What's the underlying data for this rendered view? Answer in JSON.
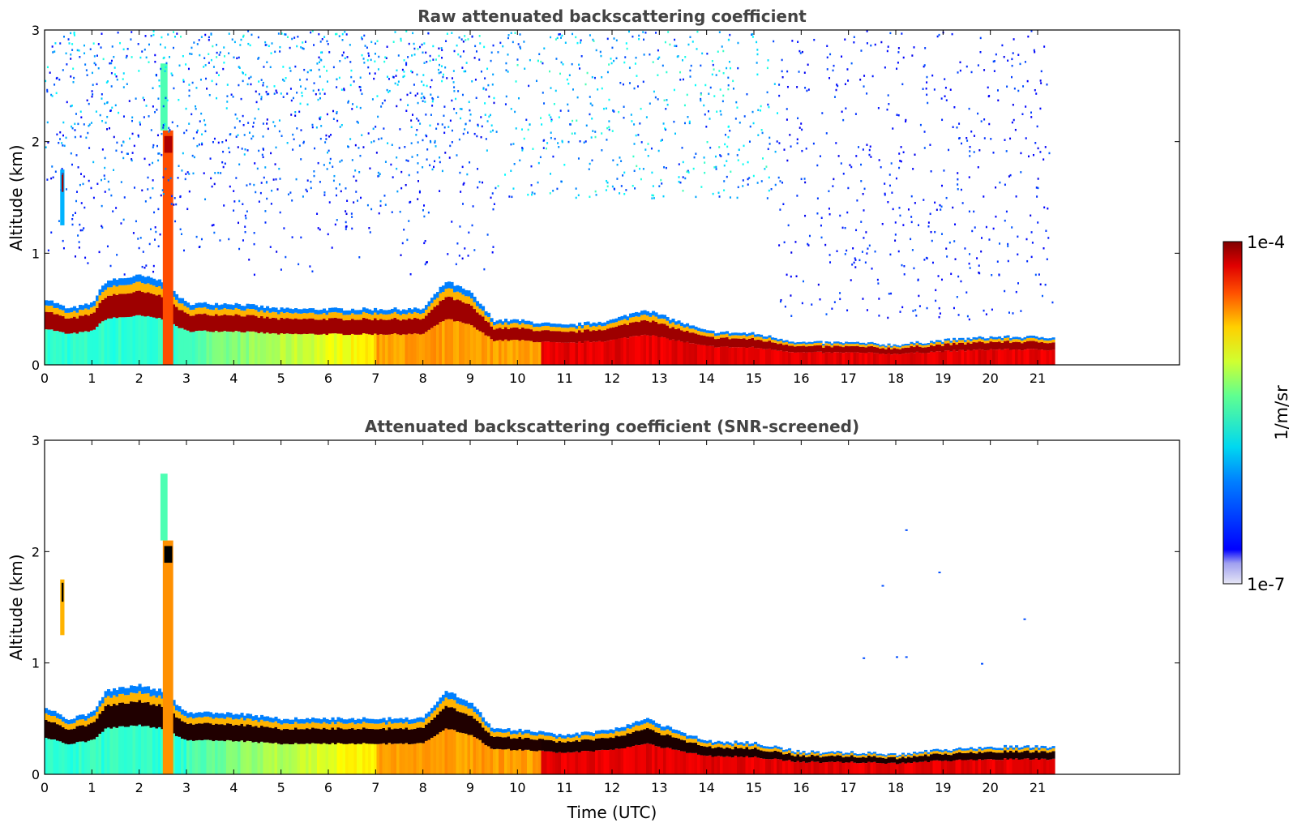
{
  "chart_data": [
    {
      "type": "heatmap",
      "title": "Raw attenuated backscattering coefficient",
      "xlabel": "",
      "ylabel": "Altitude (km)",
      "xlim": [
        0,
        24
      ],
      "ylim": [
        0,
        3
      ],
      "xticks": [
        0,
        1,
        2,
        3,
        4,
        5,
        6,
        7,
        8,
        9,
        10,
        11,
        12,
        13,
        14,
        15,
        16,
        17,
        18,
        19,
        20,
        21
      ],
      "yticks": [
        0,
        1,
        2,
        3
      ],
      "data_time_range": [
        0,
        21.3
      ],
      "screening": "raw",
      "layer_top_km": [
        [
          0,
          0.6
        ],
        [
          0.5,
          0.5
        ],
        [
          1,
          0.55
        ],
        [
          1.3,
          0.75
        ],
        [
          2,
          0.8
        ],
        [
          2.5,
          0.75
        ],
        [
          3,
          0.55
        ],
        [
          4,
          0.55
        ],
        [
          5,
          0.5
        ],
        [
          6,
          0.5
        ],
        [
          7,
          0.5
        ],
        [
          8,
          0.5
        ],
        [
          8.5,
          0.75
        ],
        [
          9,
          0.65
        ],
        [
          9.5,
          0.4
        ],
        [
          10,
          0.4
        ],
        [
          11,
          0.35
        ],
        [
          12,
          0.4
        ],
        [
          12.7,
          0.5
        ],
        [
          13,
          0.45
        ],
        [
          14,
          0.3
        ],
        [
          15,
          0.28
        ],
        [
          16,
          0.2
        ],
        [
          17,
          0.2
        ],
        [
          18,
          0.18
        ],
        [
          19,
          0.22
        ],
        [
          20,
          0.25
        ],
        [
          21.3,
          0.25
        ]
      ],
      "grid": false
    },
    {
      "type": "heatmap",
      "title": "Attenuated backscattering coefficient (SNR-screened)",
      "xlabel": "Time (UTC)",
      "ylabel": "Altitude (km)",
      "xlim": [
        0,
        24
      ],
      "ylim": [
        0,
        3
      ],
      "xticks": [
        0,
        1,
        2,
        3,
        4,
        5,
        6,
        7,
        8,
        9,
        10,
        11,
        12,
        13,
        14,
        15,
        16,
        17,
        18,
        19,
        20,
        21
      ],
      "yticks": [
        0,
        1,
        2,
        3
      ],
      "data_time_range": [
        0,
        21.3
      ],
      "screening": "SNR",
      "grid": false
    }
  ],
  "colorbar": {
    "label": "1/m/sr",
    "max_label": "1e-4",
    "min_label": "1e-7",
    "scale": "log",
    "range": [
      1e-07,
      0.0001
    ],
    "colormap": "jet"
  }
}
